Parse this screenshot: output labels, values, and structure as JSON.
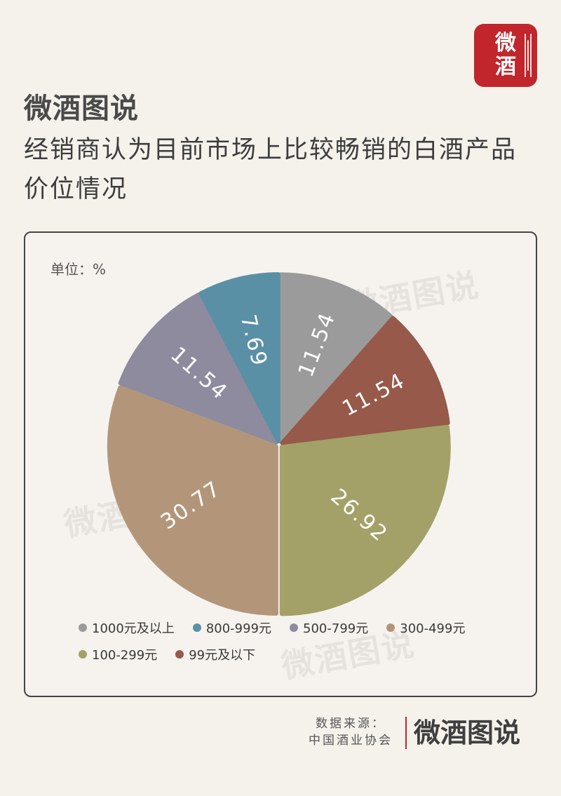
{
  "badge": {
    "line1": "微",
    "line2": "酒"
  },
  "brand": "微酒图说",
  "title": "经销商认为目前市场上比较畅销的白酒产品价位情况",
  "unit_label": "单位：%",
  "watermark": "微酒图说",
  "chart_data": {
    "type": "pie",
    "title": "",
    "slices": [
      {
        "label": "1000元及以上",
        "value": 11.54,
        "display": "11.54",
        "color": "#9b9b9b"
      },
      {
        "label": "99元及以下",
        "value": 11.54,
        "display": "11.54",
        "color": "#96594a"
      },
      {
        "label": "100-299元",
        "value": 26.92,
        "display": "26.92",
        "color": "#a3a167"
      },
      {
        "label": "300-499元",
        "value": 30.77,
        "display": "30.77",
        "color": "#b3967a"
      },
      {
        "label": "500-799元",
        "value": 11.54,
        "display": "11.54",
        "color": "#8e8b9e"
      },
      {
        "label": "800-999元",
        "value": 7.69,
        "display": "7.69",
        "color": "#5a90a6"
      }
    ],
    "legend_order": [
      "1000元及以上",
      "800-999元",
      "500-799元",
      "300-499元",
      "100-299元",
      "99元及以下"
    ],
    "legend_position": "bottom"
  },
  "source": {
    "line1": "数据来源：",
    "line2": "中国酒业协会"
  },
  "footer_brand": "微酒图说"
}
